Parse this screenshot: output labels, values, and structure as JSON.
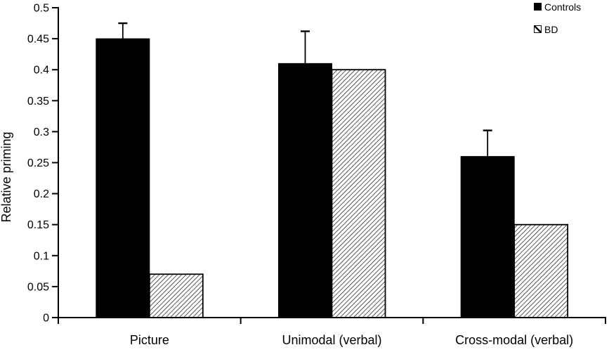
{
  "figure": {
    "background": "#ffffff",
    "text_color": "#000000"
  },
  "chart_data": {
    "type": "bar",
    "title": "",
    "xlabel": "",
    "ylabel": "Relative priming",
    "categories": [
      "Picture",
      "Unimodal (verbal)",
      "Cross-modal (verbal)"
    ],
    "series": [
      {
        "name": "Controls",
        "style": "solid-black",
        "values": [
          0.45,
          0.41,
          0.26
        ],
        "errors_up": [
          0.025,
          0.052,
          0.042
        ]
      },
      {
        "name": "BD",
        "style": "diagonal-hatch",
        "values": [
          0.07,
          0.4,
          0.15
        ],
        "errors_up": [
          0,
          0,
          0
        ]
      }
    ],
    "ylim": [
      0,
      0.5
    ],
    "yticks": [
      {
        "value": 0,
        "label": "0"
      },
      {
        "value": 0.05,
        "label": "0.05"
      },
      {
        "value": 0.1,
        "label": "0.1"
      },
      {
        "value": 0.15,
        "label": "0.15"
      },
      {
        "value": 0.2,
        "label": "0.2"
      },
      {
        "value": 0.25,
        "label": "0.25"
      },
      {
        "value": 0.3,
        "label": "0.3"
      },
      {
        "value": 0.35,
        "label": "0.35"
      },
      {
        "value": 0.4,
        "label": "0.4"
      },
      {
        "value": 0.45,
        "label": "0.45"
      },
      {
        "value": 0.5,
        "label": "0.5"
      }
    ],
    "grid": false,
    "legend_position": "top-right",
    "colors": {
      "bar_fill": "#000000",
      "hatch_line": "#000000",
      "axis": "#000000",
      "background": "#ffffff"
    }
  }
}
